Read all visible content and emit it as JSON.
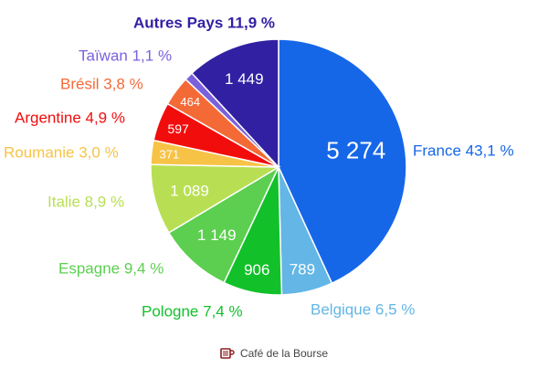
{
  "chart_data": {
    "type": "pie",
    "title": "",
    "slices": [
      {
        "name": "France",
        "value": 5274,
        "value_label": "5 274",
        "label": "France 43,1 %",
        "color": "#1667e8"
      },
      {
        "name": "Belgique",
        "value": 789,
        "value_label": "789",
        "label": "Belgique 6,5 %",
        "color": "#63b6e6"
      },
      {
        "name": "Pologne",
        "value": 906,
        "value_label": "906",
        "label": "Pologne 7,4 %",
        "color": "#12c12a"
      },
      {
        "name": "Espagne",
        "value": 1149,
        "value_label": "1 149",
        "label": "Espagne 9,4 %",
        "color": "#5ccf50"
      },
      {
        "name": "Italie",
        "value": 1089,
        "value_label": "1 089",
        "label": "Italie 8,9 %",
        "color": "#b8df53"
      },
      {
        "name": "Roumanie",
        "value": 371,
        "value_label": "371",
        "label": "Roumanie 3,0 %",
        "color": "#f7c346"
      },
      {
        "name": "Argentine",
        "value": 597,
        "value_label": "597",
        "label": "Argentine 4,9 %",
        "color": "#f20d0d"
      },
      {
        "name": "Brésil",
        "value": 464,
        "value_label": "464",
        "label": "Brésil 3,8 %",
        "color": "#f46a37"
      },
      {
        "name": "Taïwan",
        "value": 134,
        "value_label": "",
        "label": "Taïwan 1,1 %",
        "color": "#7b61dd"
      },
      {
        "name": "Autres Pays",
        "value": 1449,
        "value_label": "1 449",
        "label": "Autres Pays 11,9 %",
        "color": "#3220a3"
      }
    ]
  },
  "footer": {
    "brand": "Café de la Bourse",
    "icon": "coffee-cup-icon"
  }
}
